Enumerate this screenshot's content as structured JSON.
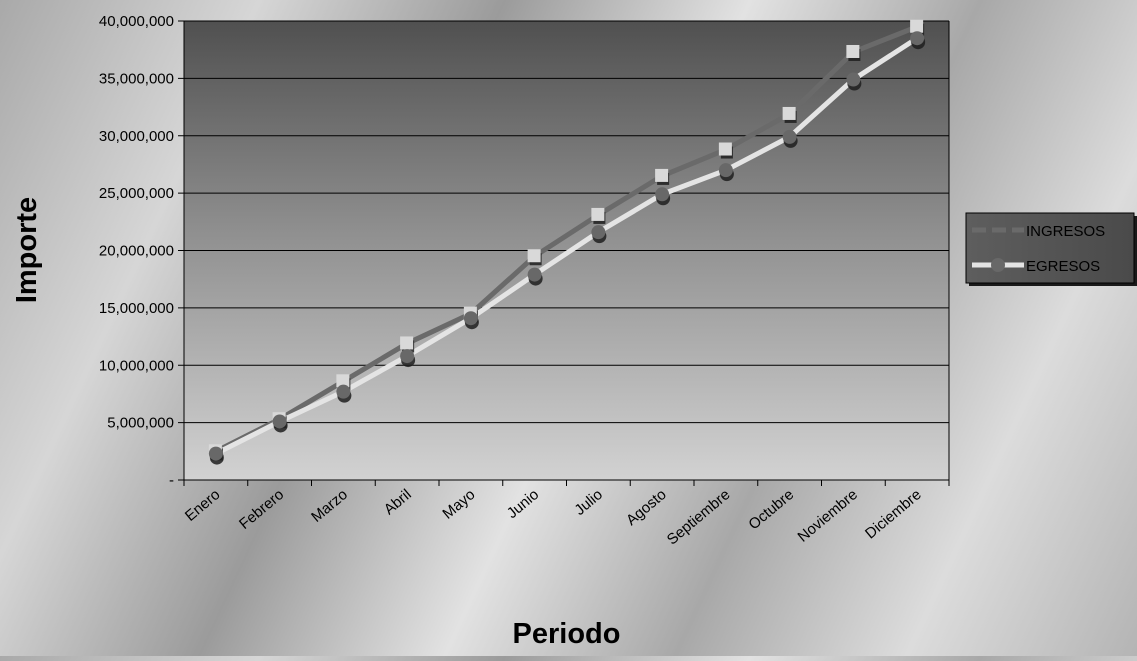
{
  "chart_data": {
    "type": "line",
    "xlabel": "Periodo",
    "ylabel": "Importe",
    "ylim": [
      0,
      40000000
    ],
    "y_ticks": [
      "-",
      "5,000,000",
      "10,000,000",
      "15,000,000",
      "20,000,000",
      "25,000,000",
      "30,000,000",
      "35,000,000",
      "40,000,000"
    ],
    "categories": [
      "Enero",
      "Febrero",
      "Marzo",
      "Abril",
      "Mayo",
      "Junio",
      "Julio",
      "Agosto",
      "Septiembre",
      "Octubre",
      "Noviembre",
      "Diciembre"
    ],
    "grid": true,
    "legend_position": "right",
    "series": [
      {
        "name": "INGRESOS",
        "values": [
          2500000,
          5300000,
          8600000,
          11900000,
          14500000,
          19500000,
          23100000,
          26500000,
          28800000,
          31900000,
          37300000,
          39500000
        ],
        "line_color": "#6a6a6a",
        "marker": "square",
        "marker_color": "#d9d9d9"
      },
      {
        "name": "EGRESOS",
        "values": [
          2300000,
          5100000,
          7700000,
          10800000,
          14100000,
          17900000,
          21600000,
          24900000,
          27000000,
          29900000,
          34900000,
          38500000
        ],
        "line_color": "#e4e4e4",
        "marker": "circle",
        "marker_color": "#686868"
      }
    ]
  }
}
